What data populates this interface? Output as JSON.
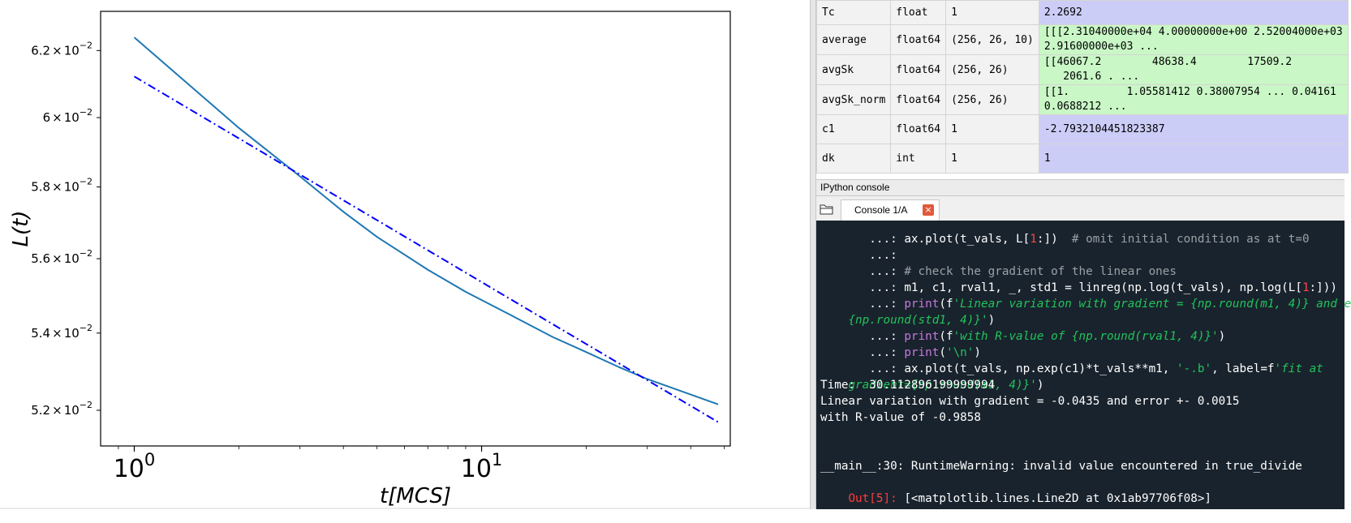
{
  "plot": {
    "ylabel": "L(t)",
    "xlabel": "t[MCS]",
    "xticks": [
      {
        "base": "10",
        "exp": "0"
      },
      {
        "base": "10",
        "exp": "1"
      }
    ],
    "yticks": [
      {
        "mant": "6.2",
        "exp": "−2"
      },
      {
        "mant": "6",
        "exp": "−2"
      },
      {
        "mant": "5.8",
        "exp": "−2"
      },
      {
        "mant": "5.6",
        "exp": "−2"
      },
      {
        "mant": "5.4",
        "exp": "−2"
      },
      {
        "mant": "5.2",
        "exp": "−2"
      }
    ],
    "times_sign": "×",
    "colors": {
      "data": "#1f77b4",
      "fit": "#0000ff"
    }
  },
  "chart_data": {
    "type": "line",
    "xscale": "log",
    "yscale": "log",
    "xlabel": "t[MCS]",
    "ylabel": "L(t)",
    "xlim": [
      0.8,
      52
    ],
    "ylim": [
      0.0511,
      0.0632
    ],
    "series": [
      {
        "style": "solid",
        "x": [
          1,
          2,
          3,
          4,
          5,
          7,
          9,
          12,
          16,
          20,
          25,
          30,
          40,
          48
        ],
        "y": [
          0.0624,
          0.0597,
          0.0583,
          0.0573,
          0.0566,
          0.0557,
          0.0551,
          0.0545,
          0.0539,
          0.0535,
          0.0531,
          0.0528,
          0.0524,
          0.05215
        ]
      },
      {
        "style": "dashdot",
        "x": [
          1,
          48
        ],
        "y": [
          0.06122,
          0.0517
        ]
      }
    ]
  },
  "variables": {
    "rows": [
      {
        "name": "Tc",
        "type": "float",
        "size": "1",
        "value": "2.2692",
        "kind": "num"
      },
      {
        "name": "average",
        "type": "float64",
        "size": "(256, 26, 10)",
        "value": "[[[2.31040000e+04 4.00000000e+00 2.52004000e+03\n2.91600000e+03 ...",
        "kind": "arr"
      },
      {
        "name": "avgSk",
        "type": "float64",
        "size": "(256, 26)",
        "value": "[[46067.2        48638.4        17509.2\n   2061.6 . ...",
        "kind": "arr"
      },
      {
        "name": "avgSk_norm",
        "type": "float64",
        "size": "(256, 26)",
        "value": "[[1.         1.05581412 0.38007954 ... 0.04161\n0.0688212 ...",
        "kind": "arr"
      },
      {
        "name": "c1",
        "type": "float64",
        "size": "1",
        "value": "-2.7932104451823387",
        "kind": "num"
      },
      {
        "name": "dk",
        "type": "int",
        "size": "1",
        "value": "1",
        "kind": "num"
      }
    ]
  },
  "console": {
    "header": "IPython console",
    "tab_label": "Console 1/A",
    "close_symbol": "×",
    "cont_prompt": "   ...: ",
    "line1_code": "ax.plot(t_vals, L[",
    "line1_num": "1",
    "line1_rest": ":])  ",
    "line1_comment": "# omit initial condition as at t=0",
    "line3_comment": "# check the gradient of the linear ones",
    "line4_code_a": "m1, c1, rval1, _, std1 = linreg(np.log(t_vals), np.log(L[",
    "line4_num": "1",
    "line4_code_b": ":]))",
    "kw_print": "print",
    "line5_a": "(f",
    "line5_str": "'Linear variation with gradient = {np.round(m1, 4)} and e",
    "line6_str": "{np.round(std1, 4)}'",
    "line6_b": ")",
    "line7_str": "'with R-value of {np.round(rval1, 4)}'",
    "line8_str": "'\\n'",
    "line9_a": "ax.plot(t_vals, np.exp(c1)*t_vals**m1, ",
    "line9_str1": "'-.b'",
    "line9_b": ", label=f",
    "line9_str2": "'fit at",
    "line10_str": "gradient={np.round(m1, 4)}'",
    "line10_b": ")",
    "out_time": "Time:  30.112896199999994",
    "out_grad": "Linear variation with gradient = -0.0435 and error +- 0.0015",
    "out_r": "with R-value of -0.9858",
    "warning": "__main__:30: RuntimeWarning: invalid value encountered in true_divide",
    "out_prompt": "Out[",
    "out_num": "5",
    "out_prompt_end": "]: ",
    "out_value": "[<matplotlib.lines.Line2D at 0x1ab97706f08>]"
  }
}
